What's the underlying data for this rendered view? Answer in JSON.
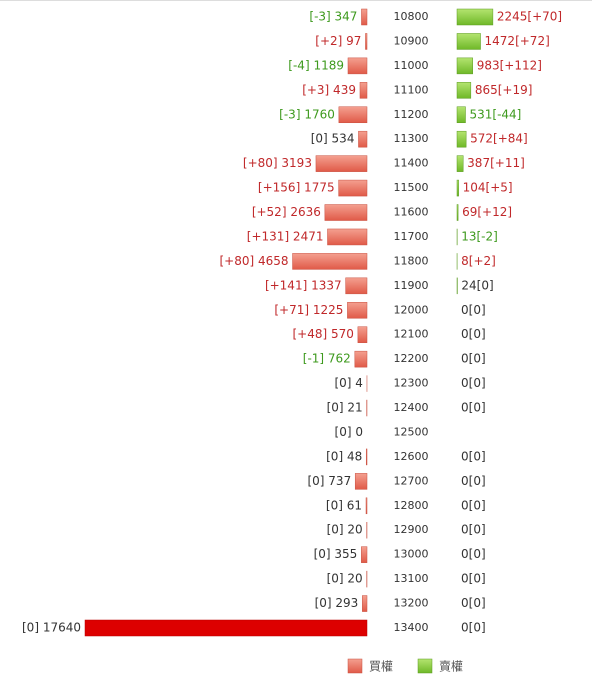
{
  "chart_data": {
    "type": "butterfly",
    "categories": [
      "10800",
      "10900",
      "11000",
      "11100",
      "11200",
      "11300",
      "11400",
      "11500",
      "11600",
      "11700",
      "11800",
      "11900",
      "12000",
      "12100",
      "12200",
      "12300",
      "12400",
      "12500",
      "12600",
      "12700",
      "12800",
      "12900",
      "13000",
      "13100",
      "13200",
      "13400"
    ],
    "series": [
      {
        "name": "買權",
        "color": "#ec6f5e",
        "highlight_color": "#dd0000",
        "highlight_index": 25,
        "values": [
          347,
          97,
          1189,
          439,
          1760,
          534,
          3193,
          1775,
          2636,
          2471,
          4658,
          1337,
          1225,
          570,
          762,
          4,
          21,
          0,
          48,
          737,
          61,
          20,
          355,
          20,
          293,
          17640
        ],
        "changes": [
          -3,
          2,
          -4,
          3,
          -3,
          0,
          80,
          156,
          52,
          131,
          80,
          141,
          71,
          48,
          -1,
          0,
          0,
          0,
          0,
          0,
          0,
          0,
          0,
          0,
          0,
          0
        ],
        "value_labels": [
          "[-3] 347",
          "[+2] 97",
          "[-4] 1189",
          "[+3] 439",
          "[-3] 1760",
          "[0] 534",
          "[+80] 3193",
          "[+156] 1775",
          "[+52] 2636",
          "[+131] 2471",
          "[+80] 4658",
          "[+141] 1337",
          "[+71] 1225",
          "[+48] 570",
          "[-1] 762",
          "[0] 4",
          "[0] 21",
          "[0] 0",
          "[0] 48",
          "[0] 737",
          "[0] 61",
          "[0] 20",
          "[0] 355",
          "[0] 20",
          "[0] 293",
          "[0] 17640"
        ]
      },
      {
        "name": "賣權",
        "color": "#8fd040",
        "values": [
          2245,
          1472,
          983,
          865,
          531,
          572,
          387,
          104,
          69,
          13,
          8,
          24,
          0,
          0,
          0,
          0,
          0,
          null,
          0,
          0,
          0,
          0,
          0,
          0,
          0,
          0
        ],
        "changes": [
          70,
          72,
          112,
          19,
          -44,
          84,
          11,
          5,
          12,
          -2,
          2,
          0,
          0,
          0,
          0,
          0,
          0,
          null,
          0,
          0,
          0,
          0,
          0,
          0,
          0,
          0
        ],
        "value_labels": [
          "2245[+70]",
          "1472[+72]",
          "983[+112]",
          "865[+19]",
          "531[-44]",
          "572[+84]",
          "387[+11]",
          "104[+5]",
          "69[+12]",
          "13[-2]",
          "8[+2]",
          "24[0]",
          "0[0]",
          "0[0]",
          "0[0]",
          "0[0]",
          "0[0]",
          null,
          "0[0]",
          "0[0]",
          "0[0]",
          "0[0]",
          "0[0]",
          "0[0]",
          "0[0]",
          "0[0]"
        ]
      }
    ]
  }
}
